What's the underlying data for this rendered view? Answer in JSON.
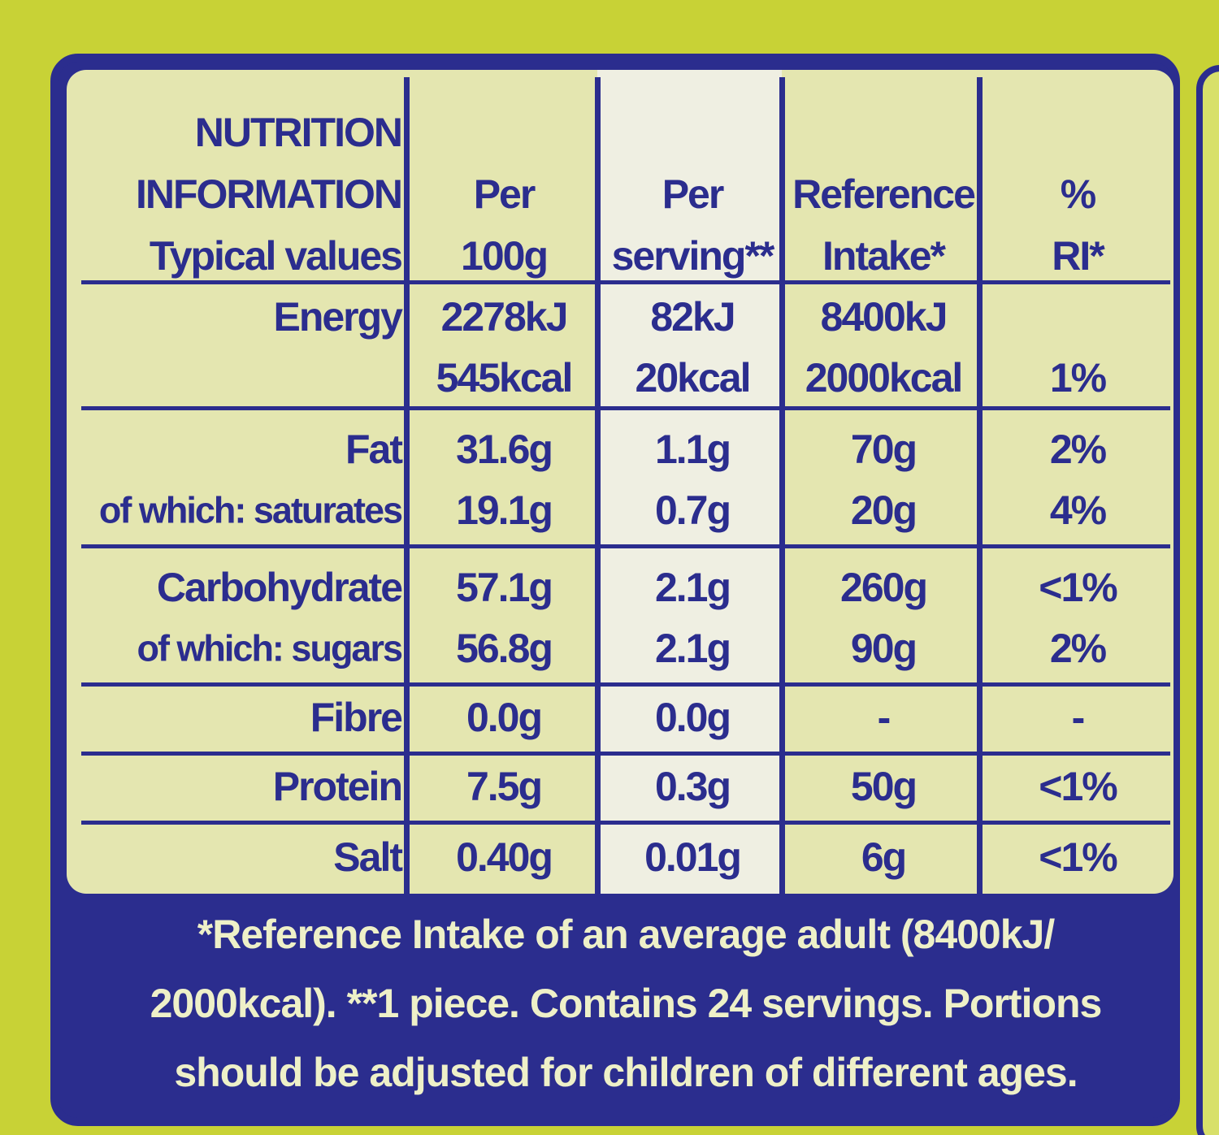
{
  "table": {
    "header": [
      [
        "NUTRITION",
        "INFORMATION",
        "Typical values"
      ],
      [
        "Per",
        "100g"
      ],
      [
        "Per",
        "serving**"
      ],
      [
        "Reference",
        "Intake*"
      ],
      [
        "%",
        "RI*"
      ]
    ],
    "rows": [
      {
        "lines": [
          [
            "Energy",
            "2278kJ",
            "82kJ",
            "8400kJ",
            null
          ],
          [
            null,
            "545kcal",
            "20kcal",
            "2000kcal",
            "1%"
          ]
        ]
      },
      {
        "lines": [
          [
            "Fat",
            "31.6g",
            "1.1g",
            "70g",
            "2%"
          ],
          [
            "of which: saturates",
            "19.1g",
            "0.7g",
            "20g",
            "4%"
          ]
        ]
      },
      {
        "lines": [
          [
            "Carbohydrate",
            "57.1g",
            "2.1g",
            "260g",
            "<1%"
          ],
          [
            "of which: sugars",
            "56.8g",
            "2.1g",
            "90g",
            "2%"
          ]
        ]
      },
      {
        "lines": [
          [
            "Fibre",
            "0.0g",
            "0.0g",
            "-",
            "-"
          ]
        ]
      },
      {
        "lines": [
          [
            "Protein",
            "7.5g",
            "0.3g",
            "50g",
            "<1%"
          ]
        ]
      },
      {
        "lines": [
          [
            "Salt",
            "0.40g",
            "0.01g",
            "6g",
            "<1%"
          ]
        ]
      }
    ]
  },
  "note": [
    "*Reference Intake of an average adult (8400kJ/",
    "2000kcal). **1 piece. Contains 24 servings. Portions",
    "should be adjusted for children of different ages."
  ]
}
